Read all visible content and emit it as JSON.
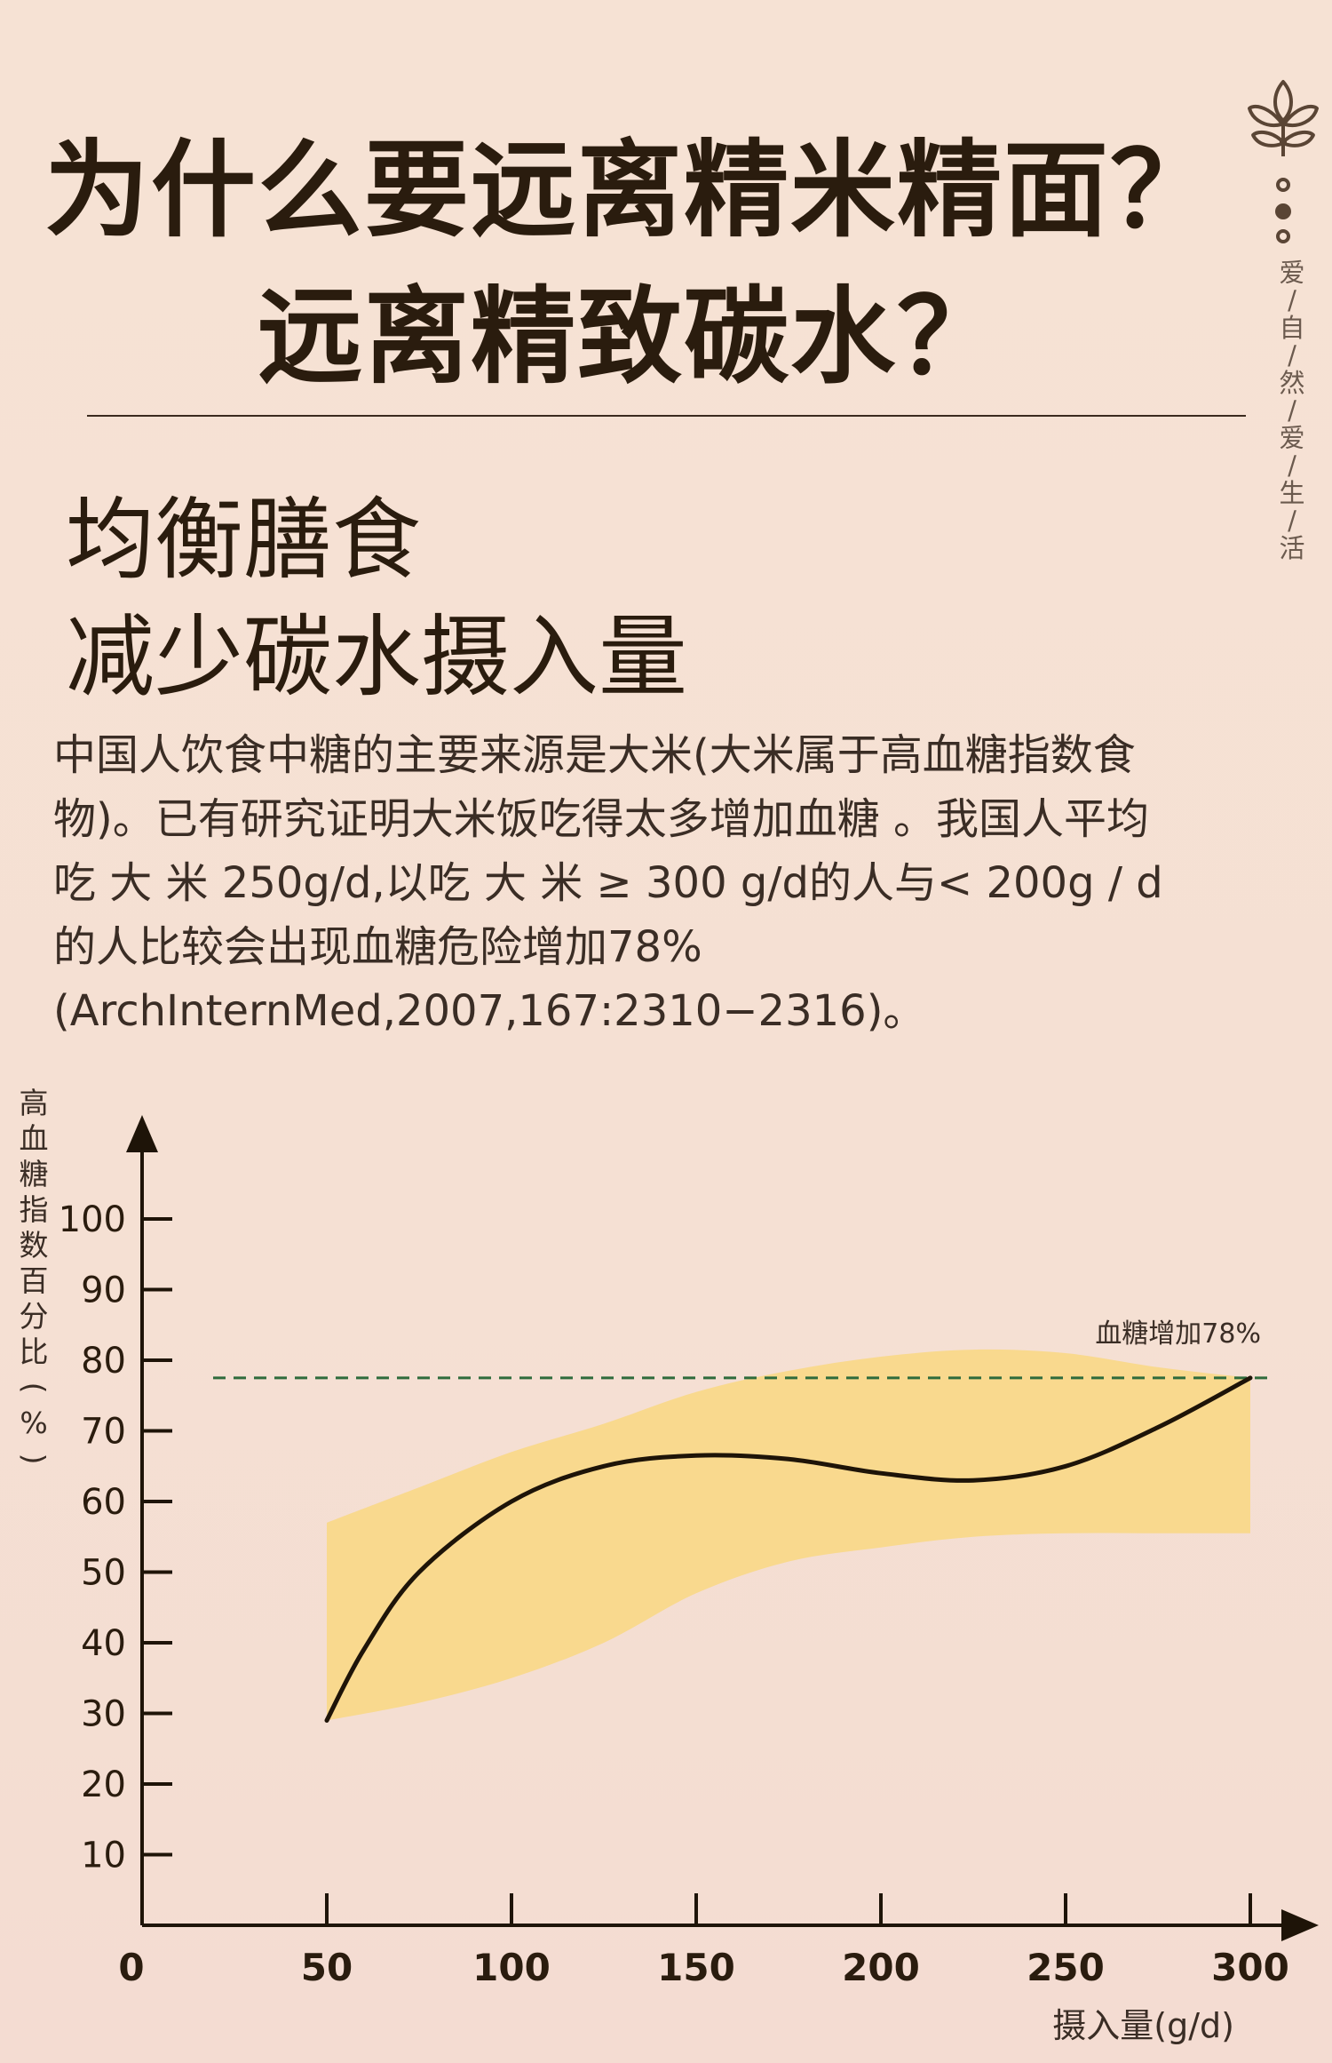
{
  "header": {
    "title_line1": "为什么要远离精米精面？",
    "title_line2": "远离精致碳水？"
  },
  "side": {
    "vertical_text": [
      "爱",
      "/",
      "自",
      "/",
      "然",
      "/",
      "爱",
      "/",
      "生",
      "/",
      "活"
    ],
    "logo_icon": "wheat-sprout-icon"
  },
  "section": {
    "subtitle1": "均衡膳食",
    "subtitle2": "减少碳水摄入量",
    "paragraph_lines": [
      "中国人饮食中糖的主要来源是大米(大米属于高血糖指数食",
      "物)。已有研究证明大米饭吃得太多增加血糖 。我国人平均",
      "吃 大 米 250g/d,以吃 大 米 ≥ 300 g/d的人与< 200g / d",
      "的人比较会出现血糖危险增加78%",
      "(ArchInternMed,2007,167:2310−2316)。"
    ]
  },
  "colors": {
    "background": "#f6e2d4",
    "text": "#2a1c0e",
    "band": "#f9d88a",
    "curve": "#1e1408",
    "reference_line": "#2f6b3c"
  },
  "chart_data": {
    "type": "line",
    "xlabel": "摄入量(g/d)",
    "ylabel_chars": [
      "高",
      "血",
      "糖",
      "指",
      "数",
      "百",
      "分",
      "比",
      "(",
      "%",
      ")"
    ],
    "x_ticks": [
      0,
      50,
      100,
      150,
      200,
      250,
      300
    ],
    "y_ticks": [
      10,
      20,
      30,
      40,
      50,
      60,
      70,
      80,
      90,
      100
    ],
    "xlim": [
      0,
      330
    ],
    "ylim": [
      0,
      110
    ],
    "series": [
      {
        "x": [
          50,
          60,
          75,
          100,
          125,
          150,
          175,
          200,
          225,
          250,
          275,
          300
        ],
        "values": [
          29,
          39,
          50,
          60,
          65,
          66.5,
          66,
          64,
          63,
          65,
          70.5,
          77.5
        ]
      }
    ],
    "band": {
      "x": [
        50,
        75,
        100,
        125,
        150,
        175,
        200,
        225,
        250,
        275,
        300
      ],
      "upper": [
        57,
        62,
        67,
        71,
        75.5,
        78.5,
        80.5,
        81.5,
        81,
        79,
        77.5
      ],
      "lower": [
        29,
        31.5,
        35,
        40,
        47,
        51.5,
        53.5,
        55,
        55.5,
        55.5,
        55.5
      ]
    },
    "reference": {
      "y": 77.5,
      "label": "血糖增加78%"
    }
  }
}
